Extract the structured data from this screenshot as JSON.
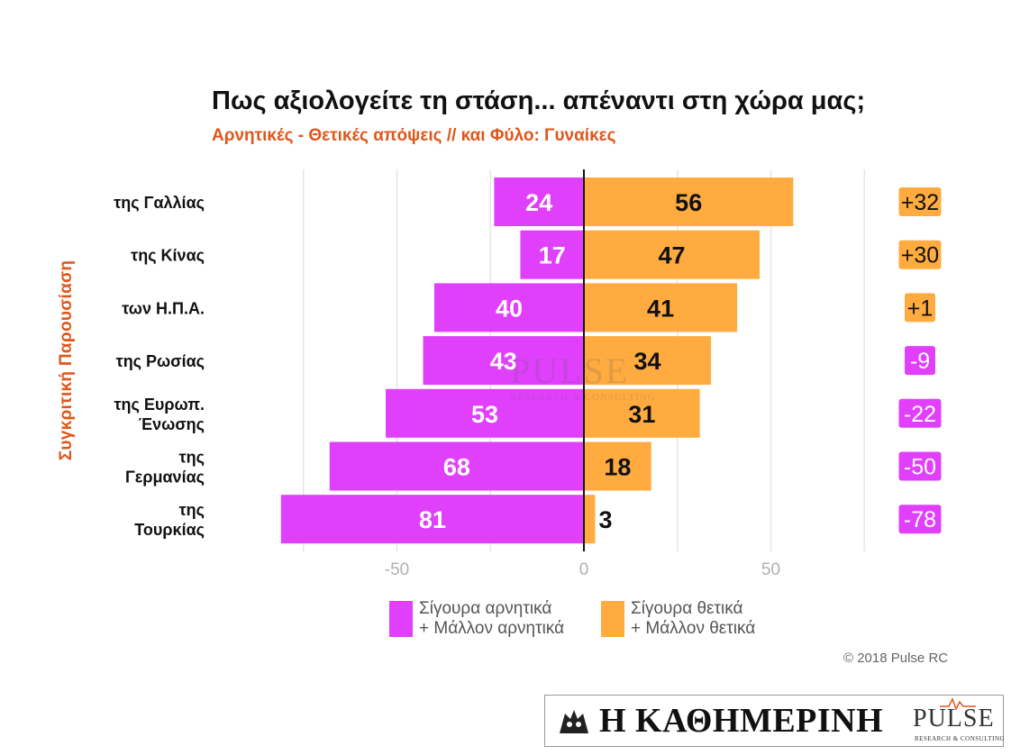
{
  "title": "Πως αξιολογείτε τη στάση... απέναντι στη χώρα μας;",
  "subtitle": "Αρνητικές - Θετικές απόψεις // και Φύλο: Γυναίκες",
  "side_label": "Συγκριτική Παρουσίαση",
  "copyright": "© 2018 Pulse RC",
  "footer": {
    "brand": "Η ΚΑΘΗΜΕΡΙΝΗ",
    "pulse": "PULSE",
    "pulse_sub": "RESEARCH & CONSULTING"
  },
  "watermark": {
    "main": "PULSE",
    "sub": "RESEARCH & CONSULTING"
  },
  "colors": {
    "negative": "#e040fb",
    "positive": "#ffab40",
    "balance_pos": "#ffab40",
    "balance_neg": "#e040fb",
    "grid": "#e6e6e6",
    "zero_line": "#111111",
    "tick": "#b0b0b0"
  },
  "legend": {
    "negative": [
      "Σίγουρα αρνητικά",
      "+ Μάλλον αρνητικά"
    ],
    "positive": [
      "Σίγουρα θετικά",
      "+ Μάλλον θετικά"
    ]
  },
  "chart_data": {
    "type": "bar",
    "orientation": "horizontal-diverging",
    "categories": [
      [
        "της Γαλλίας"
      ],
      [
        "της Κίνας"
      ],
      [
        "των Η.Π.Α."
      ],
      [
        "της Ρωσίας"
      ],
      [
        "της Ευρωπ.",
        "Ένωσης"
      ],
      [
        "της",
        "Γερμανίας"
      ],
      [
        "της",
        "Τουρκίας"
      ]
    ],
    "series": [
      {
        "name": "Σίγουρα αρνητικά + Μάλλον αρνητικά",
        "values": [
          24,
          17,
          40,
          43,
          53,
          68,
          81
        ]
      },
      {
        "name": "Σίγουρα θετικά + Μάλλον θετικά",
        "values": [
          56,
          47,
          41,
          34,
          31,
          18,
          3
        ]
      }
    ],
    "balance": [
      "+32",
      "+30",
      "+1",
      "-9",
      "-22",
      "-50",
      "-78"
    ],
    "xticks": [
      -50,
      0,
      50
    ],
    "xlim": [
      -90,
      75
    ],
    "grid": true
  }
}
